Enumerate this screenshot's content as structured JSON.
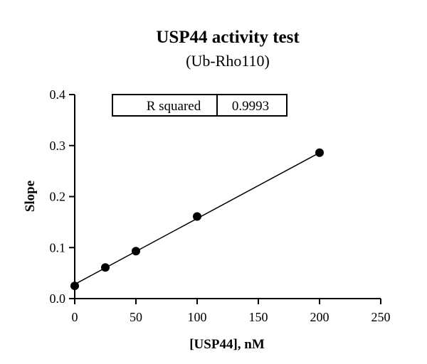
{
  "chart_data": {
    "type": "scatter",
    "title": "USP44 activity test",
    "subtitle": "(Ub-Rho110)",
    "xlabel": "[USP44], nM",
    "ylabel": "Slope",
    "xlim": [
      0,
      250
    ],
    "ylim": [
      0,
      0.4
    ],
    "x_ticks": [
      0,
      50,
      100,
      150,
      200,
      250
    ],
    "y_ticks": [
      0.0,
      0.1,
      0.2,
      0.3,
      0.4
    ],
    "x_tick_labels": [
      "0",
      "50",
      "100",
      "150",
      "200",
      "250"
    ],
    "y_tick_labels": [
      "0.0",
      "0.1",
      "0.2",
      "0.3",
      "0.4"
    ],
    "points": [
      {
        "x": 0,
        "y": 0.025
      },
      {
        "x": 25,
        "y": 0.061
      },
      {
        "x": 50,
        "y": 0.093
      },
      {
        "x": 100,
        "y": 0.161
      },
      {
        "x": 200,
        "y": 0.286
      }
    ],
    "fit_line": {
      "x0": 0,
      "y0": 0.028,
      "x1": 200,
      "y1": 0.286
    },
    "grid": false,
    "legend": "none",
    "stats_box": {
      "label": "R squared",
      "value": "0.9993"
    }
  }
}
